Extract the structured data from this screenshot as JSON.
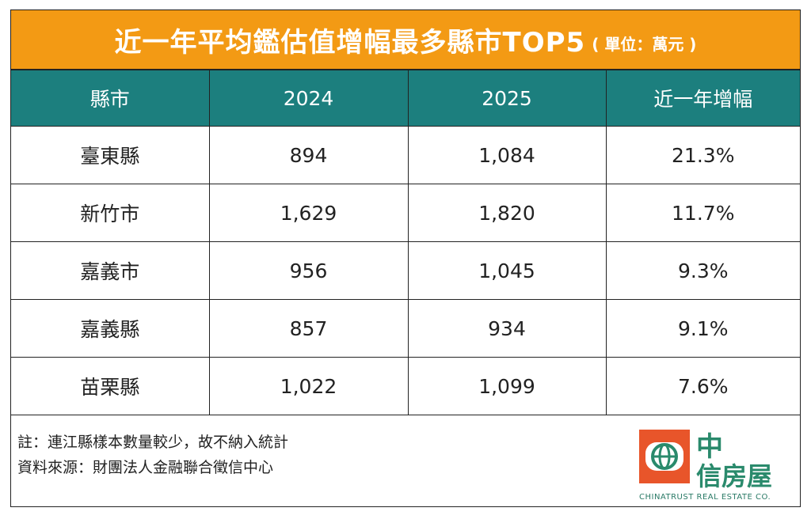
{
  "header": {
    "title": "近一年平均鑑估值增幅最多縣市TOP5",
    "unit": "( 單位：萬元 )"
  },
  "table": {
    "columns": [
      "縣市",
      "2024",
      "2025",
      "近一年增幅"
    ],
    "rows": [
      [
        "臺東縣",
        "894",
        "1,084",
        "21.3%"
      ],
      [
        "新竹市",
        "1,629",
        "1,820",
        "11.7%"
      ],
      [
        "嘉義市",
        "956",
        "1,045",
        "9.3%"
      ],
      [
        "嘉義縣",
        "857",
        "934",
        "9.1%"
      ],
      [
        "苗栗縣",
        "1,022",
        "1,099",
        "7.6%"
      ]
    ]
  },
  "notes": [
    "註：連江縣樣本數量較少，故不納入統計",
    "資料來源：財團法人金融聯合徵信中心"
  ],
  "logo": {
    "line1": "中",
    "line2": "信房屋",
    "english": "CHINATRUST REAL ESTATE CO."
  }
}
